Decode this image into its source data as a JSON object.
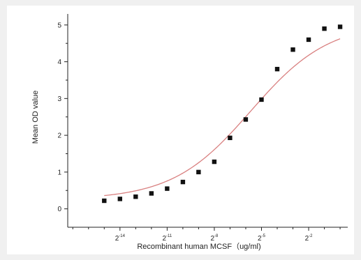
{
  "chart_data": {
    "type": "scatter",
    "title": "",
    "xlabel": "Recombinant human  MCSF（ug/ml)",
    "ylabel": "Mean OD value",
    "x_scale": "log2",
    "x_tick_labels": [
      {
        "base": "2",
        "exp": "-14",
        "value": 6.103515625e-05
      },
      {
        "base": "2",
        "exp": "-11",
        "value": 0.00048828125
      },
      {
        "base": "2",
        "exp": "-8",
        "value": 0.00390625
      },
      {
        "base": "2",
        "exp": "-5",
        "value": 0.03125
      },
      {
        "base": "2",
        "exp": "-2",
        "value": 0.25
      }
    ],
    "xlim": [
      6.1e-06,
      1.4
    ],
    "ylim": [
      -0.5,
      5.3
    ],
    "y_ticks": [
      0,
      1,
      2,
      3,
      4,
      5
    ],
    "grid": false,
    "series": [
      {
        "marker": "square",
        "color": "#111111",
        "x": [
          3.05e-05,
          6.1e-05,
          0.000122,
          0.000244,
          0.000488,
          0.000977,
          0.00195,
          0.0039,
          0.0078,
          0.0156,
          0.03125,
          0.0625,
          0.125,
          0.25,
          0.5,
          1.0
        ],
        "y": [
          0.22,
          0.27,
          0.33,
          0.42,
          0.55,
          0.73,
          1.0,
          1.28,
          1.93,
          2.43,
          2.97,
          3.8,
          4.33,
          4.6,
          4.9,
          4.95
        ]
      }
    ],
    "fit_curve": {
      "type": "4PL",
      "color": "#d98080",
      "bottom": 0.25,
      "top": 5.07,
      "ec50": 0.0195,
      "hill": 0.58
    }
  }
}
